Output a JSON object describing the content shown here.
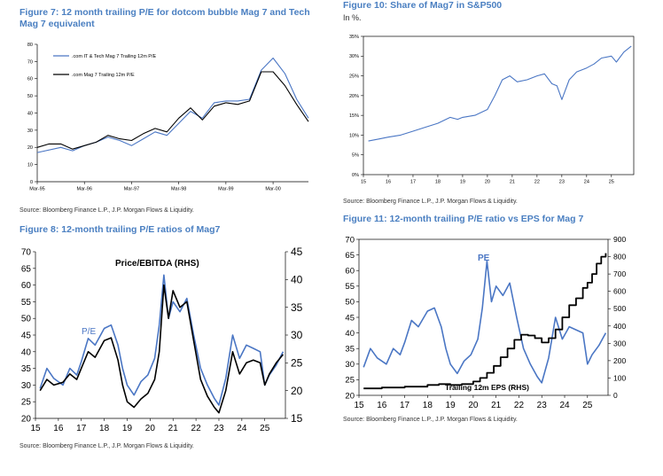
{
  "panels": {
    "fig7": {
      "title": "Figure 7: 12 month trailing P/E for dotcom bubble Mag 7 and Tech Mag 7 equivalent",
      "source": "Source: Bloomberg Finance L.P., J.P. Morgan Flows & Liquidity."
    },
    "fig8": {
      "title": "Figure 8: 12-month trailing P/E ratios of Mag7",
      "source": "Source: Bloomberg Finance L.P., J.P. Morgan Flows & Liquidity."
    },
    "fig10": {
      "title": "Figure 10: Share of Mag7 in S&P500",
      "subtitle": "In %.",
      "source": "Source: Bloomberg Finance L.P., J.P. Morgan Flows & Liquidity."
    },
    "fig11": {
      "title": "Figure 11: 12-month trailing P/E ratio vs EPS for Mag 7",
      "source": "Source: Bloomberg Finance L.P., J.P. Morgan Flows & Liquidity."
    }
  },
  "colors": {
    "blue": "#4a76c4",
    "black": "#000000",
    "title": "#4a7fc1"
  },
  "chart_data": [
    {
      "id": "fig7",
      "type": "line",
      "ylim": [
        0,
        80
      ],
      "yticks": [
        0,
        10,
        20,
        30,
        40,
        50,
        60,
        70,
        80
      ],
      "xlim": [
        0,
        69
      ],
      "xticks": [
        {
          "x": 0,
          "label": "Mar-95"
        },
        {
          "x": 12,
          "label": "Mar-96"
        },
        {
          "x": 24,
          "label": "Mar-97"
        },
        {
          "x": 36,
          "label": "Mar-98"
        },
        {
          "x": 48,
          "label": "Mar-99"
        },
        {
          "x": 60,
          "label": "Mar-00"
        }
      ],
      "legend": {
        "position": "top-left"
      },
      "series": [
        {
          "name": ".com IT & Tech Mag 7 Trailing 12m P/E",
          "color": "blue",
          "x": [
            0,
            6,
            9,
            12,
            15,
            18,
            21,
            24,
            27,
            30,
            33,
            36,
            39,
            42,
            45,
            48,
            51,
            54,
            57,
            60,
            63,
            66,
            69
          ],
          "y": [
            17,
            20,
            18,
            21,
            23,
            26,
            24,
            21,
            25,
            29,
            27,
            34,
            41,
            37,
            46,
            47,
            47,
            48,
            65,
            72,
            63,
            48,
            37
          ]
        },
        {
          "name": ".com Mag 7 Trailing 12m P/E",
          "color": "black",
          "x": [
            0,
            3,
            6,
            9,
            12,
            15,
            18,
            21,
            24,
            27,
            30,
            33,
            36,
            39,
            42,
            45,
            48,
            51,
            54,
            57,
            60,
            63,
            66,
            69
          ],
          "y": [
            20,
            22,
            22,
            19,
            21,
            23,
            27,
            25,
            24,
            28,
            31,
            29,
            37,
            43,
            36,
            44,
            46,
            45,
            47,
            64,
            64,
            56,
            45,
            35
          ]
        }
      ]
    },
    {
      "id": "fig8",
      "type": "line",
      "ylim": [
        20,
        70
      ],
      "yticks": [
        20,
        25,
        30,
        35,
        40,
        45,
        50,
        55,
        60,
        65,
        70
      ],
      "y2lim": [
        15,
        45
      ],
      "y2ticks": [
        15,
        20,
        25,
        30,
        35,
        40,
        45
      ],
      "xlim": [
        15,
        25.9
      ],
      "xticks": [
        15,
        16,
        17,
        18,
        19,
        20,
        21,
        22,
        23,
        24,
        25
      ],
      "annotations": [
        "Price/EBITDA (RHS)",
        "P/E"
      ],
      "series": [
        {
          "name": "P/E",
          "color": "blue",
          "axis": "left",
          "x": [
            15.2,
            15.5,
            15.8,
            16.2,
            16.5,
            16.8,
            17.0,
            17.3,
            17.6,
            18.0,
            18.3,
            18.6,
            18.8,
            19.0,
            19.3,
            19.6,
            19.9,
            20.2,
            20.4,
            20.6,
            20.8,
            21.0,
            21.3,
            21.6,
            21.9,
            22.2,
            22.5,
            22.8,
            23.0,
            23.3,
            23.6,
            23.9,
            24.2,
            24.5,
            24.8,
            25.0,
            25.2,
            25.5,
            25.8
          ],
          "y": [
            29,
            35,
            32,
            30,
            35,
            33,
            37,
            44,
            42,
            47,
            48,
            42,
            35,
            30,
            27,
            31,
            33,
            38,
            48,
            63,
            50,
            55,
            52,
            56,
            45,
            35,
            30,
            26,
            24,
            32,
            45,
            38,
            42,
            41,
            40,
            30,
            33,
            36,
            40
          ]
        },
        {
          "name": "Price/EBITDA (RHS)",
          "color": "black",
          "axis": "right",
          "x": [
            15.2,
            15.5,
            15.8,
            16.2,
            16.5,
            16.8,
            17.0,
            17.3,
            17.6,
            18.0,
            18.3,
            18.6,
            18.8,
            19.0,
            19.3,
            19.6,
            19.9,
            20.2,
            20.4,
            20.6,
            20.8,
            21.0,
            21.3,
            21.6,
            21.9,
            22.2,
            22.5,
            22.8,
            23.0,
            23.3,
            23.6,
            23.9,
            24.2,
            24.5,
            24.8,
            25.0,
            25.2,
            25.5,
            25.8
          ],
          "y": [
            20,
            22,
            21,
            21.5,
            23,
            22,
            24,
            27,
            26,
            29,
            29.5,
            25.5,
            21,
            18,
            17,
            18.5,
            19.5,
            22,
            27,
            39,
            33,
            38,
            35,
            36,
            29,
            22,
            19,
            17,
            16,
            20,
            27,
            23,
            25,
            25.5,
            25,
            21,
            23,
            25,
            26.5
          ]
        }
      ]
    },
    {
      "id": "fig10",
      "type": "line",
      "ylim": [
        0,
        35
      ],
      "yticks": [
        0,
        5,
        10,
        15,
        20,
        25,
        30,
        35
      ],
      "ytick_labels": [
        "0%",
        "5%",
        "10%",
        "15%",
        "20%",
        "25%",
        "30%",
        "35%"
      ],
      "xlim": [
        15,
        25.9
      ],
      "xticks": [
        15,
        16,
        17,
        18,
        19,
        20,
        21,
        22,
        23,
        24,
        25
      ],
      "series": [
        {
          "name": "Share of Mag7 in S&P500",
          "color": "blue",
          "x": [
            15.2,
            15.6,
            16.0,
            16.5,
            17.0,
            17.5,
            18.0,
            18.5,
            18.8,
            19.0,
            19.5,
            20.0,
            20.3,
            20.6,
            20.9,
            21.2,
            21.6,
            22.0,
            22.3,
            22.6,
            22.8,
            23.0,
            23.3,
            23.6,
            24.0,
            24.3,
            24.6,
            25.0,
            25.2,
            25.5,
            25.8
          ],
          "y": [
            8.5,
            9,
            9.5,
            10,
            11,
            12,
            13,
            14.5,
            14,
            14.5,
            15,
            16.5,
            20,
            24,
            25,
            23.5,
            24,
            25,
            25.5,
            23,
            22.5,
            19,
            24,
            26,
            27,
            28,
            29.5,
            30,
            28.5,
            31,
            32.5
          ]
        }
      ]
    },
    {
      "id": "fig11",
      "type": "line",
      "ylim": [
        20,
        70
      ],
      "yticks": [
        20,
        25,
        30,
        35,
        40,
        45,
        50,
        55,
        60,
        65,
        70
      ],
      "y2lim": [
        0,
        900
      ],
      "y2ticks": [
        0,
        100,
        200,
        300,
        400,
        500,
        600,
        700,
        800,
        900
      ],
      "xlim": [
        15,
        25.9
      ],
      "xticks": [
        15,
        16,
        17,
        18,
        19,
        20,
        21,
        22,
        23,
        24,
        25
      ],
      "annotations": [
        "PE",
        "Trailing 12m EPS (RHS)"
      ],
      "series": [
        {
          "name": "PE",
          "color": "blue",
          "axis": "left",
          "x": [
            15.2,
            15.5,
            15.8,
            16.2,
            16.5,
            16.8,
            17.0,
            17.3,
            17.6,
            18.0,
            18.3,
            18.6,
            18.8,
            19.0,
            19.3,
            19.6,
            19.9,
            20.2,
            20.4,
            20.6,
            20.8,
            21.0,
            21.3,
            21.6,
            21.9,
            22.2,
            22.5,
            22.8,
            23.0,
            23.3,
            23.6,
            23.9,
            24.2,
            24.5,
            24.8,
            25.0,
            25.2,
            25.5,
            25.8
          ],
          "y": [
            29,
            35,
            32,
            30,
            35,
            33,
            37,
            44,
            42,
            47,
            48,
            42,
            35,
            30,
            27,
            31,
            33,
            38,
            48,
            63,
            50,
            55,
            52,
            56,
            45,
            35,
            30,
            26,
            24,
            32,
            45,
            38,
            42,
            41,
            40,
            30,
            33,
            36,
            40
          ]
        },
        {
          "name": "Trailing 12m EPS (RHS)",
          "color": "black",
          "axis": "right",
          "step": true,
          "x": [
            15.2,
            16.0,
            17.0,
            18.0,
            18.5,
            19.0,
            19.5,
            20.0,
            20.3,
            20.6,
            20.9,
            21.2,
            21.5,
            21.8,
            22.1,
            22.4,
            22.7,
            23.0,
            23.3,
            23.6,
            23.9,
            24.2,
            24.5,
            24.8,
            25.0,
            25.2,
            25.4,
            25.6,
            25.8
          ],
          "y": [
            40,
            45,
            50,
            60,
            65,
            60,
            65,
            80,
            100,
            130,
            170,
            220,
            270,
            320,
            350,
            345,
            330,
            305,
            330,
            380,
            450,
            520,
            560,
            620,
            650,
            700,
            760,
            800,
            820
          ]
        }
      ]
    }
  ]
}
